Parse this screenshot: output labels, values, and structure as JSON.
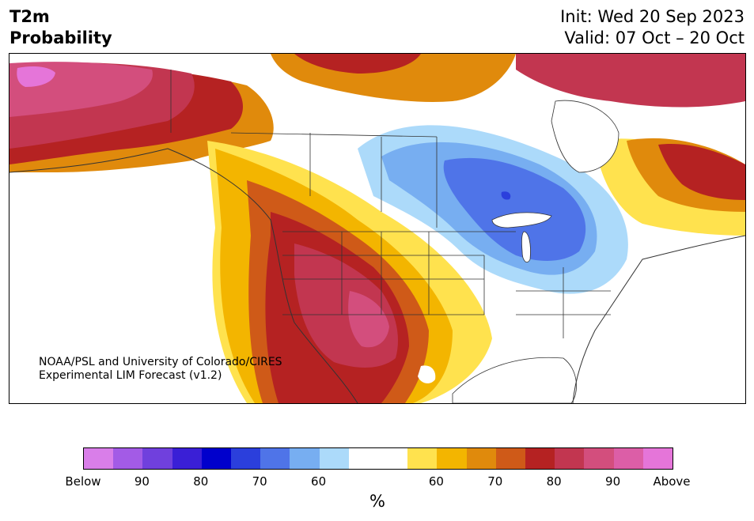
{
  "title": {
    "left_line1": "T2m",
    "left_line2": "Probability",
    "init": "Init: Wed 20 Sep 2023",
    "valid": "Valid: 07 Oct – 20 Oct"
  },
  "credit": {
    "line1": "NOAA/PSL and University of Colorado/CIRES",
    "line2": "Experimental LIM Forecast (v1.2)"
  },
  "colorbar": {
    "below_colors": [
      "#d97ee9",
      "#a35be6",
      "#7040dd",
      "#3a1fd6",
      "#0000cc",
      "#2b3fdc",
      "#4f74e8",
      "#77aef1",
      "#acdafa"
    ],
    "neutral_color": "#ffffff",
    "above_colors": [
      "#ffe24e",
      "#f3b500",
      "#e08a0c",
      "#cf5a18",
      "#b52222",
      "#c23650",
      "#d34e7d",
      "#dc5ea7",
      "#e575d9"
    ],
    "ticks": [
      "Below",
      "90",
      "80",
      "70",
      "60",
      "60",
      "70",
      "80",
      "90",
      "Above"
    ],
    "unit": "%"
  },
  "map": {
    "region": "North America",
    "legend_colors": {
      "above_strong": "#c23650",
      "above_very_strong": "#dc5ea7",
      "above_mod": "#b52222",
      "above_orange": "#cf5a18",
      "above_light": "#e08a0c",
      "above_yellow": "#f3b500",
      "above_pale": "#ffe24e",
      "below_pale": "#acdafa",
      "below_light": "#77aef1",
      "below_mod": "#4f74e8",
      "below_strong": "#2b3fdc"
    }
  }
}
